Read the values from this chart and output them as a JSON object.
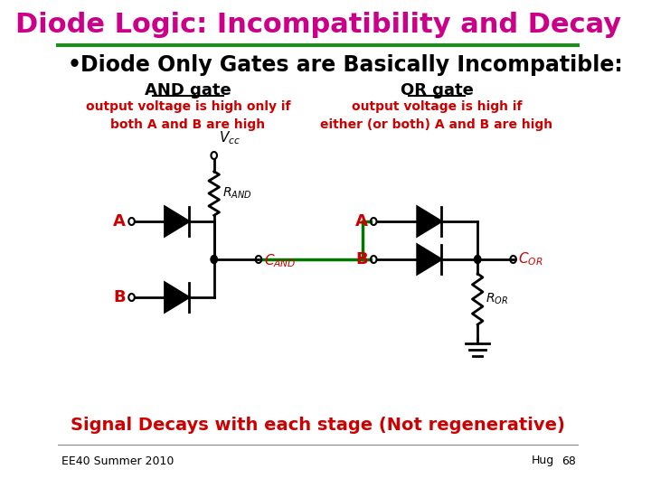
{
  "title": "Diode Logic: Incompatibility and Decay",
  "title_color": "#CC0088",
  "title_fontsize": 22,
  "bullet_text": "Diode Only Gates are Basically Incompatible:",
  "bullet_fontsize": 17,
  "and_gate_label": "AND gate",
  "or_gate_label": "OR gate",
  "and_desc": "output voltage is high only if\nboth A and B are high",
  "or_desc": "output voltage is high if\neither (or both) A and B are high",
  "gate_label_color": "#000000",
  "signal_decay_text": "Signal Decays with each stage (Not regenerative)",
  "signal_decay_color": "#CC0000",
  "footer_left": "EE40 Summer 2010",
  "footer_right": "Hug",
  "footer_page": "68",
  "bg_color": "#FFFFFF",
  "line_color": "#000000",
  "green_color": "#007700",
  "title_bar_color": "#228B22",
  "red_label_color": "#CC0000"
}
